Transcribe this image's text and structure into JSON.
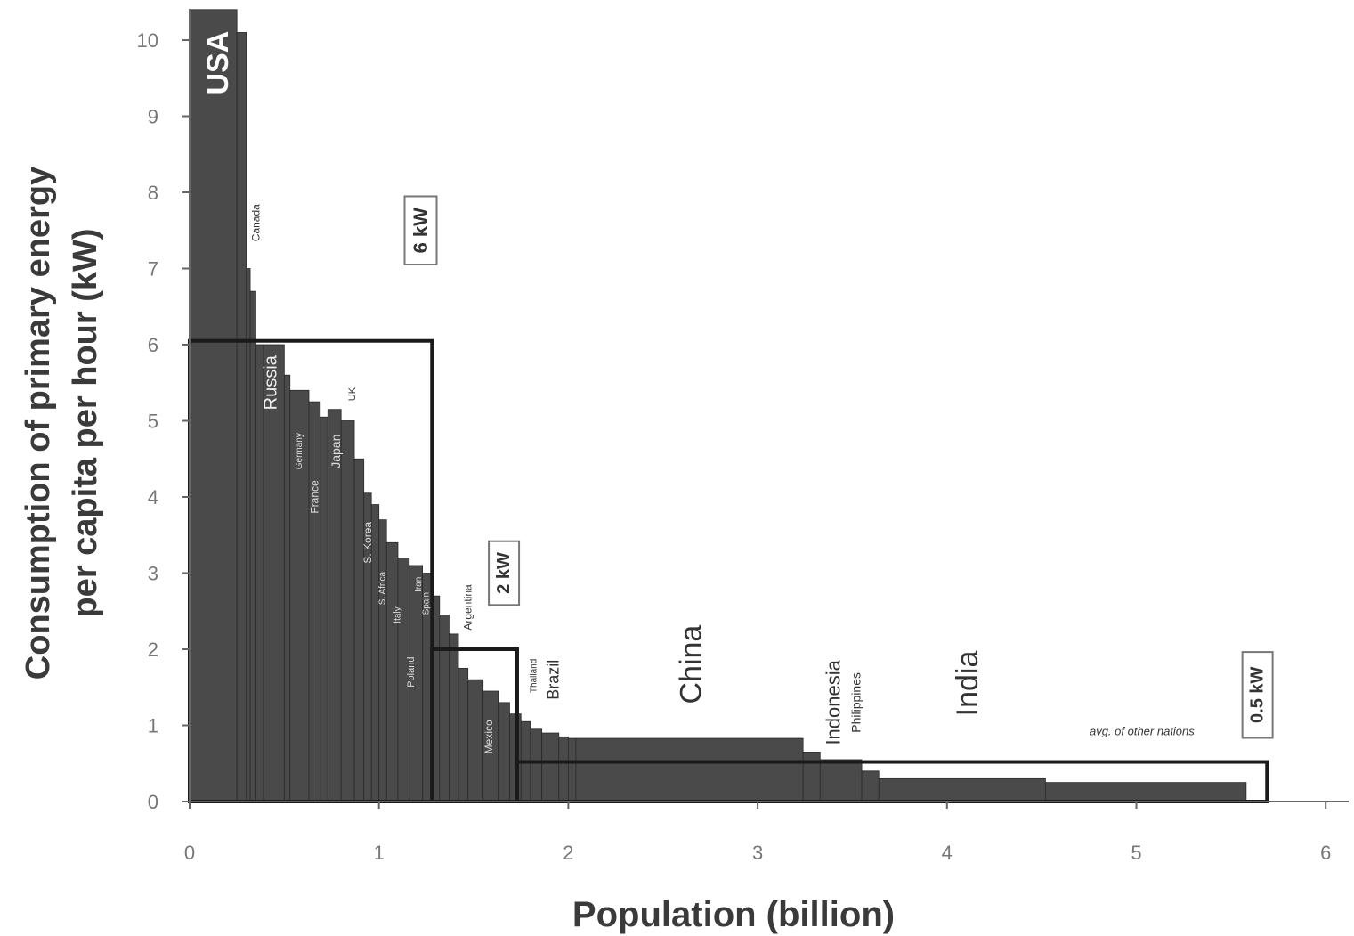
{
  "chart_data": {
    "type": "bar",
    "subtype": "variable-width step bars (population on x, per-capita energy on y)",
    "xlabel": "Population (billion)",
    "ylabel": [
      "Consumption of primary energy",
      "per capita per hour (kW)"
    ],
    "xlim": [
      0,
      6.1
    ],
    "ylim": [
      0,
      10.4
    ],
    "x_ticks": [
      "0",
      "1",
      "2",
      "3",
      "4",
      "5",
      "6"
    ],
    "y_ticks": [
      "0",
      "1",
      "2",
      "3",
      "4",
      "5",
      "6",
      "7",
      "8",
      "9",
      "10"
    ],
    "grid": false,
    "bar_color": "#4a4a4a",
    "steps": [
      {
        "x0": 0.0,
        "x1": 0.25,
        "y": 10.4
      },
      {
        "x0": 0.25,
        "x1": 0.3,
        "y": 10.1
      },
      {
        "x0": 0.3,
        "x1": 0.32,
        "y": 7.0
      },
      {
        "x0": 0.32,
        "x1": 0.35,
        "y": 6.7
      },
      {
        "x0": 0.35,
        "x1": 0.39,
        "y": 6.0
      },
      {
        "x0": 0.39,
        "x1": 0.5,
        "y": 6.0
      },
      {
        "x0": 0.5,
        "x1": 0.53,
        "y": 5.6
      },
      {
        "x0": 0.53,
        "x1": 0.63,
        "y": 5.4
      },
      {
        "x0": 0.63,
        "x1": 0.69,
        "y": 5.25
      },
      {
        "x0": 0.69,
        "x1": 0.73,
        "y": 5.05
      },
      {
        "x0": 0.73,
        "x1": 0.8,
        "y": 5.15
      },
      {
        "x0": 0.8,
        "x1": 0.87,
        "y": 5.0
      },
      {
        "x0": 0.87,
        "x1": 0.92,
        "y": 4.5
      },
      {
        "x0": 0.92,
        "x1": 0.96,
        "y": 4.05
      },
      {
        "x0": 0.96,
        "x1": 1.0,
        "y": 3.9
      },
      {
        "x0": 1.0,
        "x1": 1.04,
        "y": 3.7
      },
      {
        "x0": 1.04,
        "x1": 1.1,
        "y": 3.4
      },
      {
        "x0": 1.1,
        "x1": 1.16,
        "y": 3.2
      },
      {
        "x0": 1.16,
        "x1": 1.23,
        "y": 3.1
      },
      {
        "x0": 1.23,
        "x1": 1.28,
        "y": 3.0
      },
      {
        "x0": 1.28,
        "x1": 1.32,
        "y": 2.7
      },
      {
        "x0": 1.32,
        "x1": 1.37,
        "y": 2.45
      },
      {
        "x0": 1.37,
        "x1": 1.42,
        "y": 2.2
      },
      {
        "x0": 1.42,
        "x1": 1.47,
        "y": 1.75
      },
      {
        "x0": 1.47,
        "x1": 1.55,
        "y": 1.6
      },
      {
        "x0": 1.55,
        "x1": 1.63,
        "y": 1.45
      },
      {
        "x0": 1.63,
        "x1": 1.69,
        "y": 1.3
      },
      {
        "x0": 1.69,
        "x1": 1.75,
        "y": 1.15
      },
      {
        "x0": 1.75,
        "x1": 1.8,
        "y": 1.05
      },
      {
        "x0": 1.8,
        "x1": 1.86,
        "y": 0.95
      },
      {
        "x0": 1.86,
        "x1": 1.95,
        "y": 0.9
      },
      {
        "x0": 1.95,
        "x1": 2.0,
        "y": 0.85
      },
      {
        "x0": 2.0,
        "x1": 2.04,
        "y": 0.83
      },
      {
        "x0": 2.04,
        "x1": 3.24,
        "y": 0.83
      },
      {
        "x0": 3.24,
        "x1": 3.33,
        "y": 0.65
      },
      {
        "x0": 3.33,
        "x1": 3.55,
        "y": 0.55
      },
      {
        "x0": 3.55,
        "x1": 3.64,
        "y": 0.4
      },
      {
        "x0": 3.64,
        "x1": 4.52,
        "y": 0.3
      },
      {
        "x0": 4.52,
        "x1": 5.58,
        "y": 0.25
      }
    ],
    "country_labels": [
      {
        "text": "USA",
        "x": 0.15,
        "y": 9.7,
        "size": 34,
        "color": "#ffffff",
        "weight": "bold"
      },
      {
        "text": "Canada",
        "x": 0.35,
        "y": 7.6,
        "size": 12,
        "color": "#333333",
        "weight": "normal"
      },
      {
        "text": "Russia",
        "x": 0.43,
        "y": 5.5,
        "size": 20,
        "color": "#eeeeee",
        "weight": "normal"
      },
      {
        "text": "UK",
        "x": 0.86,
        "y": 5.35,
        "size": 11,
        "color": "#333333",
        "weight": "normal"
      },
      {
        "text": "Germany",
        "x": 0.58,
        "y": 4.6,
        "size": 10,
        "color": "#dddddd",
        "weight": "normal"
      },
      {
        "text": "Japan",
        "x": 0.77,
        "y": 4.6,
        "size": 14,
        "color": "#dddddd",
        "weight": "normal"
      },
      {
        "text": "France",
        "x": 0.66,
        "y": 4.0,
        "size": 12,
        "color": "#dddddd",
        "weight": "normal"
      },
      {
        "text": "S. Korea",
        "x": 0.94,
        "y": 3.4,
        "size": 12,
        "color": "#dddddd",
        "weight": "normal"
      },
      {
        "text": "S. Africa",
        "x": 1.02,
        "y": 2.8,
        "size": 10,
        "color": "#dddddd",
        "weight": "normal"
      },
      {
        "text": "Italy",
        "x": 1.1,
        "y": 2.45,
        "size": 10,
        "color": "#dddddd",
        "weight": "normal"
      },
      {
        "text": "Iran",
        "x": 1.21,
        "y": 2.85,
        "size": 10,
        "color": "#dddddd",
        "weight": "normal"
      },
      {
        "text": "Spain",
        "x": 1.25,
        "y": 2.6,
        "size": 10,
        "color": "#dddddd",
        "weight": "normal"
      },
      {
        "text": "Poland",
        "x": 1.17,
        "y": 1.7,
        "size": 11,
        "color": "#dddddd",
        "weight": "normal"
      },
      {
        "text": "Argentina",
        "x": 1.47,
        "y": 2.55,
        "size": 12,
        "color": "#333333",
        "weight": "normal"
      },
      {
        "text": "Mexico",
        "x": 1.58,
        "y": 0.85,
        "size": 12,
        "color": "#dddddd",
        "weight": "normal"
      },
      {
        "text": "Thailand",
        "x": 1.82,
        "y": 1.65,
        "size": 10,
        "color": "#333333",
        "weight": "normal"
      },
      {
        "text": "Brazil",
        "x": 1.92,
        "y": 1.6,
        "size": 18,
        "color": "#333333",
        "weight": "normal"
      },
      {
        "text": "China",
        "x": 2.65,
        "y": 1.8,
        "size": 34,
        "color": "#333333",
        "weight": "normal"
      },
      {
        "text": "Indonesia",
        "x": 3.4,
        "y": 1.3,
        "size": 22,
        "color": "#333333",
        "weight": "normal"
      },
      {
        "text": "Philippines",
        "x": 3.52,
        "y": 1.3,
        "size": 14,
        "color": "#333333",
        "weight": "normal"
      },
      {
        "text": "India",
        "x": 4.11,
        "y": 1.55,
        "size": 34,
        "color": "#333333",
        "weight": "normal"
      }
    ],
    "reference_outlines": [
      {
        "label": "6 kW",
        "x0": 0.0,
        "x1": 1.28,
        "y": 6.05
      },
      {
        "label": "2 kW",
        "x0": 1.28,
        "x1": 1.73,
        "y": 2.0
      },
      {
        "label": "0.5 kW",
        "x0": 1.73,
        "x1": 5.69,
        "y": 0.52
      }
    ],
    "reference_labels": [
      {
        "text": "6 kW",
        "x": 1.22,
        "y": 7.5,
        "size": 22
      },
      {
        "text": "2 kW",
        "x": 1.66,
        "y": 3.0,
        "size": 20
      },
      {
        "text": "0.5 kW",
        "x": 5.64,
        "y": 1.4,
        "size": 20
      }
    ],
    "annotations": [
      {
        "text": "avg. of other nations",
        "x": 5.03,
        "y": 0.87,
        "size": 13
      }
    ]
  }
}
